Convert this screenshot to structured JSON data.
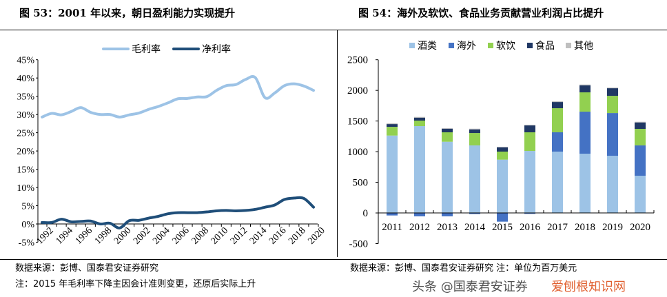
{
  "left_title": "图 53：2001 年以来，朝日盈利能力实现提升",
  "right_title": "图 54：海外及软饮、食品业务贡献营业利润占比提升",
  "left_source": "数据来源：彭博、国泰君安证券研究",
  "left_note": "注：2015 年毛利率下降主因会计准则变更，还原后实际上升",
  "right_source": "数据来源：彭博、国泰君安证券研究 注：单位为百万美元",
  "watermark": "头条 @国泰君安证券",
  "watermark2": "爱刨根知识网",
  "chart_data": [
    {
      "type": "line",
      "legend_position": "top",
      "ylim": [
        -0.05,
        0.45
      ],
      "yticks": [
        "-5%",
        "0%",
        "5%",
        "10%",
        "15%",
        "20%",
        "25%",
        "30%",
        "35%",
        "40%",
        "45%"
      ],
      "xticks": [
        "1992",
        "1994",
        "1996",
        "1998",
        "2000",
        "2002",
        "2004",
        "2006",
        "2008",
        "2010",
        "2012",
        "2014",
        "2016",
        "2018",
        "2020"
      ],
      "x": [
        1992,
        1993,
        1994,
        1995,
        1996,
        1997,
        1998,
        1999,
        2000,
        2001,
        2002,
        2003,
        2004,
        2005,
        2006,
        2007,
        2008,
        2009,
        2010,
        2011,
        2012,
        2013,
        2014,
        2015,
        2016,
        2017,
        2018,
        2019,
        2020
      ],
      "series": [
        {
          "name": "毛利率",
          "color": "#9dc3e6",
          "values": [
            0.293,
            0.303,
            0.299,
            0.308,
            0.319,
            0.306,
            0.3,
            0.3,
            0.293,
            0.299,
            0.304,
            0.314,
            0.322,
            0.332,
            0.343,
            0.344,
            0.348,
            0.349,
            0.366,
            0.379,
            0.382,
            0.396,
            0.401,
            0.346,
            0.359,
            0.379,
            0.384,
            0.378,
            0.366
          ]
        },
        {
          "name": "净利率",
          "color": "#1f4e79",
          "values": [
            0.004,
            0.004,
            0.013,
            0.006,
            0.007,
            0.008,
            0.0,
            0.002,
            -0.011,
            0.009,
            0.01,
            0.016,
            0.021,
            0.028,
            0.031,
            0.031,
            0.031,
            0.033,
            0.036,
            0.037,
            0.036,
            0.037,
            0.04,
            0.046,
            0.052,
            0.067,
            0.071,
            0.07,
            0.046
          ]
        }
      ]
    },
    {
      "type": "bar",
      "stacked": true,
      "legend_position": "top",
      "ylim": [
        -500,
        2500
      ],
      "yticks": [
        "-500",
        "0",
        "500",
        "1000",
        "1500",
        "2000",
        "2500"
      ],
      "categories": [
        "2011",
        "2012",
        "2013",
        "2014",
        "2015",
        "2016",
        "2017",
        "2018",
        "2019",
        "2020"
      ],
      "series": [
        {
          "name": "酒类",
          "color": "#9dc3e6",
          "values": [
            1263,
            1417,
            1162,
            1102,
            870,
            1012,
            1001,
            967,
            933,
            607
          ]
        },
        {
          "name": "海外",
          "color": "#4472c4",
          "values": [
            -41,
            -55,
            -55,
            -18,
            -142,
            -15,
            315,
            686,
            697,
            495
          ]
        },
        {
          "name": "软饮",
          "color": "#92d050",
          "values": [
            142,
            90,
            154,
            202,
            131,
            304,
            393,
            315,
            281,
            270
          ]
        },
        {
          "name": "食品",
          "color": "#203864",
          "values": [
            45,
            48,
            59,
            60,
            71,
            112,
            101,
            116,
            124,
            105
          ]
        },
        {
          "name": "其他",
          "color": "#bfbfbf",
          "values": [
            12,
            12,
            8,
            11,
            7,
            11,
            12,
            11,
            11,
            11
          ]
        }
      ]
    }
  ]
}
